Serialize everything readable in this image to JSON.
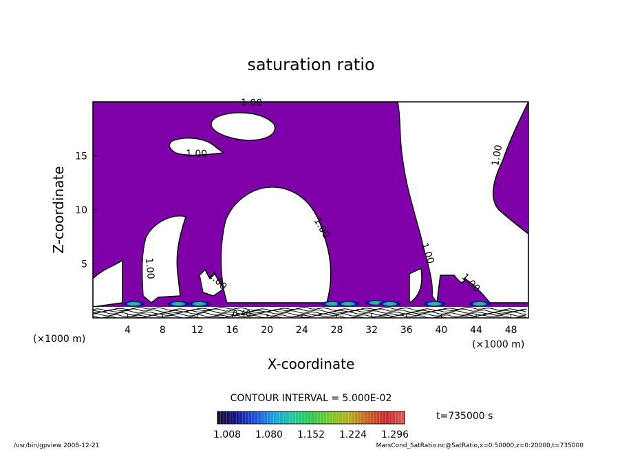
{
  "chart_data": {
    "type": "contour",
    "title": "saturation ratio",
    "xlabel": "X-coordinate",
    "ylabel": "Z-coordinate",
    "x_unit": "(×1000 m)",
    "z_unit": "(×1000 m)",
    "xlim": [
      0,
      50
    ],
    "ylim": [
      0,
      20
    ],
    "x_ticks": [
      4,
      8,
      12,
      16,
      20,
      24,
      28,
      32,
      36,
      40,
      44,
      48
    ],
    "y_ticks": [
      5,
      10,
      15
    ],
    "fill_color": "#7f00a8",
    "contour_labels": [
      "1.00",
      "1.00",
      "1.00",
      "1.00",
      "1.00",
      "1.00",
      "1.00",
      "1.00",
      "1.00",
      "0.40"
    ],
    "contour_interval": "CONTOUR INTERVAL = 5.000E-02",
    "colorbar": {
      "tick_labels": [
        "1.008",
        "1.080",
        "1.152",
        "1.224",
        "1.296"
      ],
      "colors": [
        "#1a0a2e",
        "#14148c",
        "#1e4fd8",
        "#1aa0e0",
        "#20c8a0",
        "#30c850",
        "#78c828",
        "#b8b020",
        "#c86420",
        "#c82a2a",
        "#e05a5a"
      ]
    },
    "time_label": "t=735000 s"
  },
  "footer": {
    "left": "/usr/bin/gpview   2008-12-21",
    "right": "MarsCond_SatRatio.nc@SatRatio,x=0:50000,z=0:20000,t=735000"
  }
}
